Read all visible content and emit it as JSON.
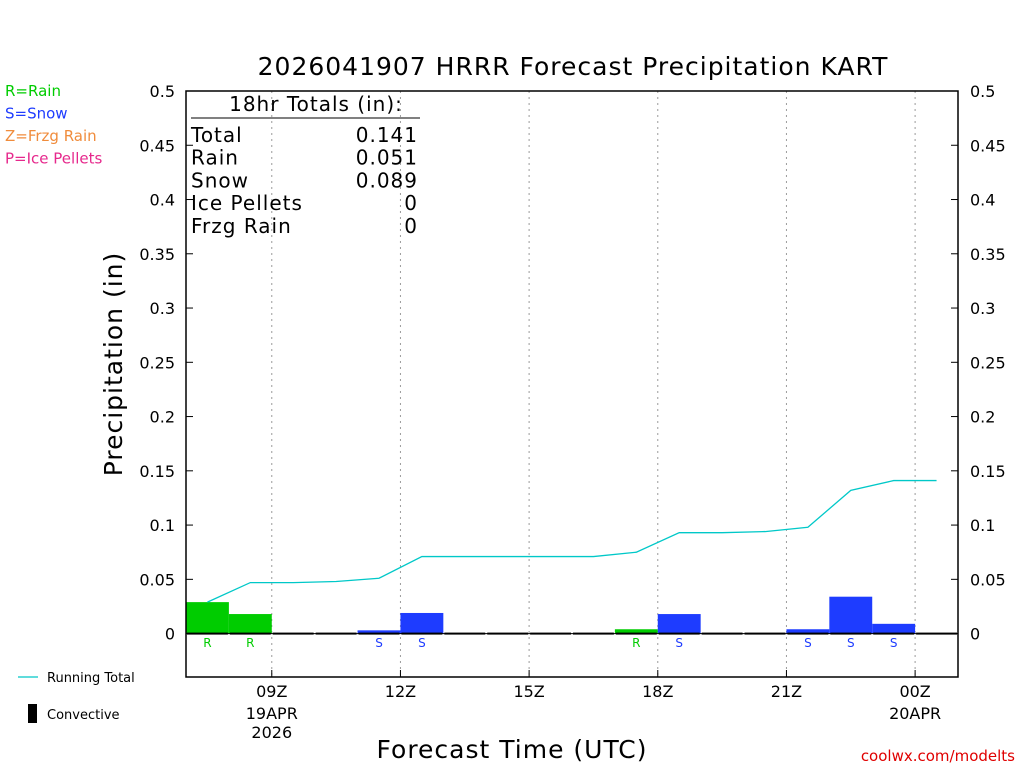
{
  "colors": {
    "rain": "#00cc00",
    "snow": "#1e3cff",
    "frzg": "#f08c3c",
    "ice": "#e6288c",
    "running_total": "#00c8c8",
    "credit": "#e00000"
  },
  "legend": [
    {
      "label": "R=Rain",
      "color": "#00cc00"
    },
    {
      "label": "S=Snow",
      "color": "#1e3cff"
    },
    {
      "label": "Z=Frzg Rain",
      "color": "#f08c3c"
    },
    {
      "label": "P=Ice Pellets",
      "color": "#e6288c"
    }
  ],
  "totals_box": {
    "heading": "18hr Totals (in):",
    "rows": [
      {
        "label": "Total",
        "value": "0.141"
      },
      {
        "label": "Rain",
        "value": "0.051"
      },
      {
        "label": "Snow",
        "value": "0.089"
      },
      {
        "label": "Ice Pellets",
        "value": "0"
      },
      {
        "label": "Frzg Rain",
        "value": "0"
      }
    ]
  },
  "bottom_legend": {
    "running_total": "Running Total",
    "convective": "Convective"
  },
  "credit": "coolwx.com/modelts",
  "chart_data": {
    "type": "bar",
    "title": "2026041907 HRRR Forecast Precipitation KART",
    "xlabel": "Forecast Time (UTC)",
    "ylabel": "Precipitation (in)",
    "ylim": [
      -0.04,
      0.5
    ],
    "yticks": [
      0,
      0.05,
      0.1,
      0.15,
      0.2,
      0.25,
      0.3,
      0.35,
      0.4,
      0.45,
      0.5
    ],
    "ytick_labels": [
      "0",
      "0.05",
      "0.1",
      "0.15",
      "0.2",
      "0.25",
      "0.3",
      "0.35",
      "0.4",
      "0.45",
      "0.5"
    ],
    "xlim": [
      7.0,
      25.0
    ],
    "xticks": [
      {
        "hour": 9,
        "label": "09Z",
        "sub": [
          "19APR",
          "2026"
        ]
      },
      {
        "hour": 12,
        "label": "12Z",
        "sub": []
      },
      {
        "hour": 15,
        "label": "15Z",
        "sub": []
      },
      {
        "hour": 18,
        "label": "18Z",
        "sub": []
      },
      {
        "hour": 21,
        "label": "21Z",
        "sub": []
      },
      {
        "hour": 24,
        "label": "00Z",
        "sub": [
          "20APR"
        ]
      }
    ],
    "grid": "vertical dotted",
    "bars": [
      {
        "hour": 8,
        "value": 0.029,
        "type": "R"
      },
      {
        "hour": 9,
        "value": 0.018,
        "type": "R"
      },
      {
        "hour": 12,
        "value": 0.003,
        "type": "S"
      },
      {
        "hour": 13,
        "value": 0.019,
        "type": "S"
      },
      {
        "hour": 18,
        "value": 0.004,
        "type": "R"
      },
      {
        "hour": 19,
        "value": 0.018,
        "type": "S"
      },
      {
        "hour": 22,
        "value": 0.004,
        "type": "S"
      },
      {
        "hour": 23,
        "value": 0.034,
        "type": "S"
      },
      {
        "hour": 24,
        "value": 0.009,
        "type": "S"
      }
    ],
    "running_total": {
      "name": "Running Total",
      "x": [
        8,
        9,
        10,
        11,
        12,
        13,
        14,
        15,
        16,
        17,
        18,
        19,
        20,
        21,
        22,
        23,
        24,
        25
      ],
      "y": [
        0.029,
        0.047,
        0.047,
        0.048,
        0.051,
        0.071,
        0.071,
        0.071,
        0.071,
        0.071,
        0.075,
        0.093,
        0.093,
        0.094,
        0.098,
        0.132,
        0.141,
        0.141
      ]
    }
  }
}
